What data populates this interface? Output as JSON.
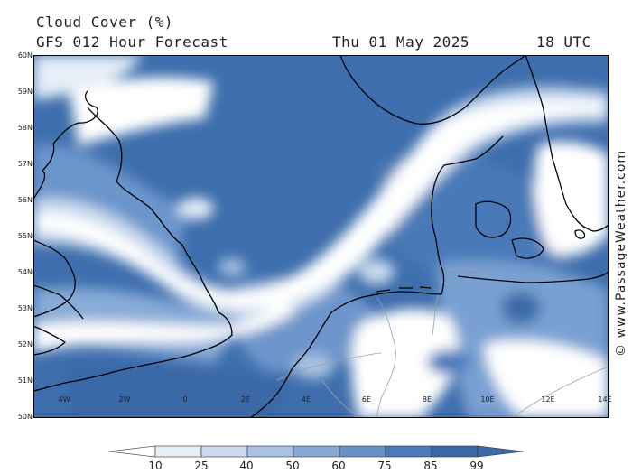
{
  "header": {
    "title": "Cloud Cover (%)",
    "subtitle": "GFS 012 Hour Forecast",
    "date": "Thu 01 May 2025",
    "time": "18 UTC"
  },
  "map": {
    "latitude_labels": [
      "60N",
      "59N",
      "58N",
      "57N",
      "56N",
      "55N",
      "54N",
      "53N",
      "52N",
      "51N",
      "50N"
    ],
    "longitude_labels": [
      "4W",
      "2W",
      "0",
      "2E",
      "4E",
      "6E",
      "8E",
      "10E",
      "12E",
      "14E"
    ],
    "lat_range": [
      50,
      60
    ],
    "lon_range": [
      -5,
      14
    ],
    "colors": {
      "land_outline": "#000000",
      "border": "#9aa0a8",
      "frame": "#000000"
    }
  },
  "legend": {
    "ticks": [
      "10",
      "25",
      "40",
      "50",
      "60",
      "75",
      "85",
      "99"
    ],
    "colors": [
      "#ffffff",
      "#e6eef8",
      "#cbdaee",
      "#a9c2e3",
      "#86a9d6",
      "#6591c9",
      "#4a7abb",
      "#3b6aa9"
    ]
  },
  "credit": "© www.PassageWeather.com"
}
